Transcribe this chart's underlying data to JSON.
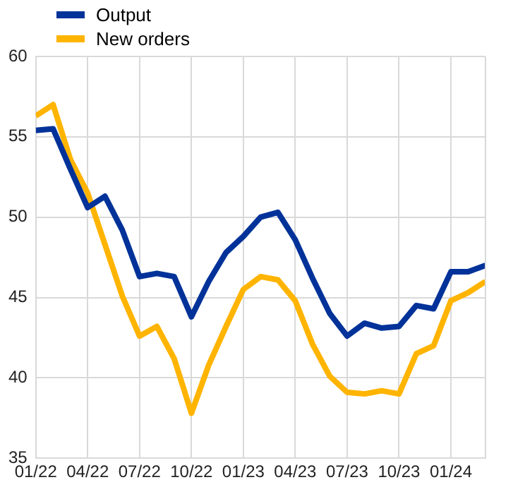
{
  "chart_data": {
    "type": "line",
    "x": [
      "2022-01",
      "2022-02",
      "2022-03",
      "2022-04",
      "2022-05",
      "2022-06",
      "2022-07",
      "2022-08",
      "2022-09",
      "2022-10",
      "2022-11",
      "2022-12",
      "2023-01",
      "2023-02",
      "2023-03",
      "2023-04",
      "2023-05",
      "2023-06",
      "2023-07",
      "2023-08",
      "2023-09",
      "2023-10",
      "2023-11",
      "2023-12",
      "2024-01",
      "2024-02",
      "2024-03"
    ],
    "series": [
      {
        "name": "Output",
        "color": "#003299",
        "values": [
          55.4,
          55.5,
          53.0,
          50.6,
          51.3,
          49.2,
          46.3,
          46.5,
          46.3,
          43.8,
          46.0,
          47.8,
          48.8,
          50.0,
          50.3,
          48.6,
          46.2,
          44.0,
          42.6,
          43.4,
          43.1,
          43.2,
          44.5,
          44.3,
          46.6,
          46.6,
          47.0
        ]
      },
      {
        "name": "New orders",
        "color": "#ffb400",
        "values": [
          56.3,
          57.0,
          53.6,
          51.5,
          48.3,
          45.1,
          42.6,
          43.2,
          41.2,
          37.8,
          40.8,
          43.2,
          45.5,
          46.3,
          46.1,
          44.8,
          42.1,
          40.1,
          39.1,
          39.0,
          39.2,
          39.0,
          41.5,
          42.0,
          44.8,
          45.3,
          46.0
        ]
      }
    ],
    "xlim": [
      "2022-01",
      "2024-03"
    ],
    "xticks": [
      {
        "value": "2022-01",
        "label": "01/22"
      },
      {
        "value": "2022-04",
        "label": "04/22"
      },
      {
        "value": "2022-07",
        "label": "07/22"
      },
      {
        "value": "2022-10",
        "label": "10/22"
      },
      {
        "value": "2023-01",
        "label": "01/23"
      },
      {
        "value": "2023-04",
        "label": "04/23"
      },
      {
        "value": "2023-07",
        "label": "07/23"
      },
      {
        "value": "2023-10",
        "label": "10/23"
      },
      {
        "value": "2024-01",
        "label": "01/24"
      }
    ],
    "ylim": [
      35,
      60
    ],
    "yticks": [
      35,
      40,
      45,
      50,
      55,
      60
    ],
    "grid": true,
    "legend": "top left",
    "marker": "none",
    "line_style": "solid"
  }
}
